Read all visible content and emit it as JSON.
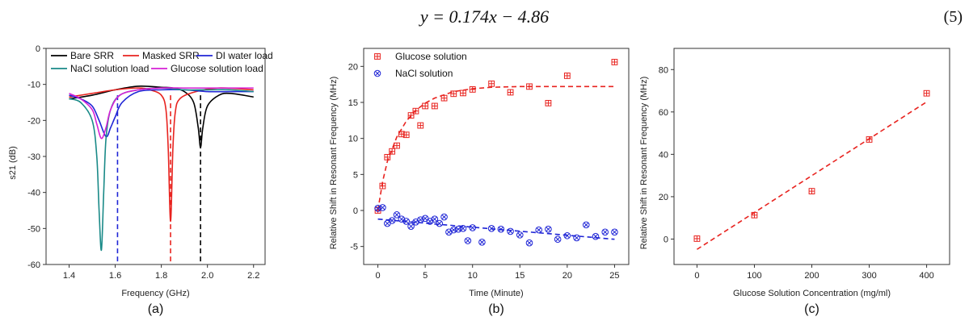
{
  "equation": "y = 0.174x − 4.86",
  "equation_number": "(5)",
  "chart_data": [
    {
      "type": "line",
      "panel_label": "(a)",
      "xlabel": "Frequency (GHz)",
      "ylabel": "s21 (dB)",
      "xlim": [
        1.3,
        2.25
      ],
      "ylim": [
        -60,
        0
      ],
      "xticks": [
        "1.4",
        "1.6",
        "1.8",
        "2.0",
        "2.2"
      ],
      "xtick_values": [
        1.4,
        1.6,
        1.8,
        2.0,
        2.2
      ],
      "yticks": [
        "0",
        "-10",
        "-20",
        "-30",
        "-40",
        "-50",
        "-60"
      ],
      "ytick_values": [
        0,
        -10,
        -20,
        -30,
        -40,
        -50,
        -60
      ],
      "legend_position": "top",
      "series": [
        {
          "name": "Bare SRR",
          "color": "#000000",
          "x": [
            1.4,
            1.5,
            1.6,
            1.7,
            1.8,
            1.85,
            1.9,
            1.94,
            1.96,
            1.97,
            1.98,
            2.0,
            2.05,
            2.1,
            2.2
          ],
          "y": [
            -14,
            -13,
            -11.5,
            -10.5,
            -10.8,
            -11,
            -12,
            -15,
            -22,
            -27.5,
            -22,
            -16,
            -13,
            -12.5,
            -13.5
          ]
        },
        {
          "name": "Masked SRR",
          "color": "#e8231f",
          "x": [
            1.4,
            1.5,
            1.6,
            1.7,
            1.75,
            1.8,
            1.82,
            1.83,
            1.84,
            1.85,
            1.86,
            1.88,
            1.95,
            2.05,
            2.2
          ],
          "y": [
            -13.5,
            -12.5,
            -11.5,
            -11,
            -11.5,
            -13,
            -17,
            -28,
            -48,
            -28,
            -18,
            -14,
            -12,
            -11,
            -11.5
          ]
        },
        {
          "name": "DI water load",
          "color": "#1f25d6",
          "x": [
            1.4,
            1.45,
            1.5,
            1.53,
            1.56,
            1.58,
            1.6,
            1.63,
            1.7,
            1.8,
            1.9,
            2.0,
            2.1,
            2.2
          ],
          "y": [
            -13,
            -14,
            -16,
            -20,
            -24.5,
            -22,
            -19,
            -15,
            -12,
            -11.5,
            -11.5,
            -12,
            -12,
            -12
          ]
        },
        {
          "name": "NaCl solution load",
          "color": "#1a8a88",
          "x": [
            1.4,
            1.45,
            1.5,
            1.52,
            1.53,
            1.54,
            1.55,
            1.56,
            1.58,
            1.62,
            1.7,
            1.8,
            1.9,
            2.0,
            2.1,
            2.2
          ],
          "y": [
            -14,
            -15,
            -20,
            -30,
            -45,
            -56,
            -40,
            -25,
            -17,
            -13,
            -11.5,
            -11,
            -11.5,
            -11.5,
            -11.5,
            -12
          ]
        },
        {
          "name": "Glucose solution load",
          "color": "#d620d6",
          "x": [
            1.4,
            1.45,
            1.5,
            1.52,
            1.54,
            1.56,
            1.58,
            1.62,
            1.7,
            1.8,
            1.9,
            2.0,
            2.1,
            2.2
          ],
          "y": [
            -12.5,
            -14,
            -17,
            -21,
            -25,
            -22,
            -17,
            -13,
            -11.5,
            -11,
            -11,
            -11,
            -11,
            -11
          ]
        }
      ],
      "vlines": [
        {
          "x": 1.61,
          "color": "#1f25d6"
        },
        {
          "x": 1.84,
          "color": "#e8231f"
        },
        {
          "x": 1.97,
          "color": "#000000"
        }
      ]
    },
    {
      "type": "scatter",
      "panel_label": "(b)",
      "xlabel": "Time (Minute)",
      "ylabel": "Relative Shift in Resonant Frequency (MHz)",
      "xlim": [
        -1.5,
        26.5
      ],
      "ylim": [
        -7.5,
        22.5
      ],
      "xticks": [
        "0",
        "5",
        "10",
        "15",
        "20",
        "25"
      ],
      "xtick_values": [
        0,
        5,
        10,
        15,
        20,
        25
      ],
      "yticks": [
        "20",
        "15",
        "10",
        "5",
        "0",
        "-5"
      ],
      "ytick_values": [
        20,
        15,
        10,
        5,
        0,
        -5
      ],
      "legend_position": "top-left",
      "series": [
        {
          "name": "Glucose solution",
          "color": "#e8231f",
          "marker": "boxed-plus",
          "x": [
            0,
            0.5,
            1,
            1.5,
            2,
            2.5,
            3,
            3.5,
            4,
            4.5,
            5,
            6,
            7,
            8,
            9,
            10,
            12,
            14,
            16,
            18,
            20,
            25
          ],
          "y": [
            0,
            3.4,
            7.4,
            8.2,
            9,
            10.6,
            10.5,
            13.2,
            13.8,
            11.8,
            14.5,
            14.5,
            15.6,
            16.2,
            16.3,
            16.8,
            17.6,
            16.4,
            17.2,
            14.9,
            18.7,
            20.6
          ],
          "fit": {
            "x": [
              0,
              0.5,
              1,
              2,
              3,
              4,
              5,
              6,
              8,
              10,
              12,
              15,
              20,
              25
            ],
            "y": [
              0,
              4,
              6.8,
              10.2,
              12.4,
              13.9,
              14.9,
              15.6,
              16.5,
              16.9,
              17.1,
              17.2,
              17.2,
              17.2
            ]
          }
        },
        {
          "name": "NaCl solution",
          "color": "#1f25d6",
          "marker": "circled-x",
          "x": [
            0,
            0.5,
            1,
            1.5,
            2,
            2.5,
            3,
            3.5,
            4,
            4.5,
            5,
            5.5,
            6,
            6.5,
            7,
            7.5,
            8,
            8.5,
            9,
            9.5,
            10,
            11,
            12,
            13,
            14,
            15,
            16,
            17,
            18,
            19,
            20,
            21,
            22,
            23,
            24,
            25
          ],
          "y": [
            0.3,
            0.4,
            -1.8,
            -1.4,
            -0.6,
            -1.2,
            -1.5,
            -2.2,
            -1.6,
            -1.3,
            -1.1,
            -1.5,
            -1.2,
            -1.8,
            -0.9,
            -3.0,
            -2.7,
            -2.6,
            -2.5,
            -4.2,
            -2.4,
            -4.4,
            -2.5,
            -2.6,
            -2.9,
            -3.4,
            -4.5,
            -2.7,
            -2.6,
            -4.0,
            -3.5,
            -3.8,
            -2.0,
            -3.6,
            -3.0,
            -3.0
          ],
          "fit": {
            "x": [
              0,
              25
            ],
            "y": [
              -1.2,
              -4.0
            ]
          }
        }
      ]
    },
    {
      "type": "scatter",
      "panel_label": "(c)",
      "xlabel": "Glucose Solution Concentration (mg/ml)",
      "ylabel": "Relative Shift in Resonant Frequency (MHz)",
      "xlim": [
        -40,
        440
      ],
      "ylim": [
        -12,
        90
      ],
      "xticks": [
        "0",
        "100",
        "200",
        "300",
        "400"
      ],
      "xtick_values": [
        0,
        100,
        200,
        300,
        400
      ],
      "yticks": [
        "80",
        "60",
        "40",
        "20",
        "0"
      ],
      "ytick_values": [
        80,
        60,
        40,
        20,
        0
      ],
      "series": [
        {
          "name": "",
          "color": "#e8231f",
          "marker": "boxed-plus",
          "x": [
            0,
            100,
            200,
            300,
            400
          ],
          "y": [
            0.2,
            11.3,
            22.6,
            47,
            68.8
          ],
          "fit": {
            "x": [
              0,
              400
            ],
            "y": [
              -4.86,
              64.74
            ]
          }
        }
      ]
    }
  ]
}
